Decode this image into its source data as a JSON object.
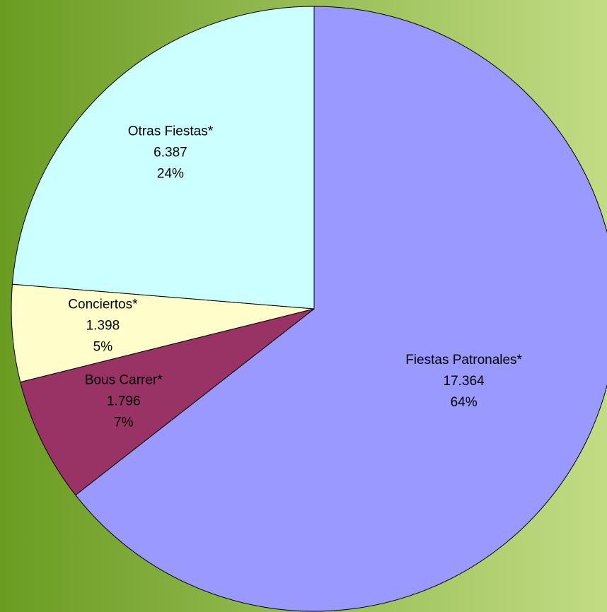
{
  "chart_data": {
    "type": "pie",
    "categories": [
      "Fiestas Patronales*",
      "Bous Carrer*",
      "Conciertos*",
      "Otras Fiestas*"
    ],
    "values": [
      17364,
      1796,
      1398,
      6387
    ],
    "value_labels": [
      "17.364",
      "1.796",
      "1.398",
      "6.387"
    ],
    "percent_labels": [
      "64%",
      "7%",
      "5%",
      "24%"
    ],
    "colors": [
      "#9999ff",
      "#993366",
      "#ffffcc",
      "#ccffff"
    ]
  }
}
